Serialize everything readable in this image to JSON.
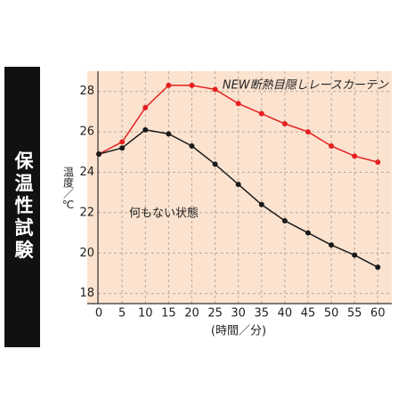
{
  "chart_data": {
    "type": "line",
    "side_label": "保温性試験",
    "ylabel": "温度／℃",
    "xlabel": "(時間／分)",
    "x": [
      0,
      5,
      10,
      15,
      20,
      25,
      30,
      35,
      40,
      45,
      50,
      55,
      60
    ],
    "series": [
      {
        "name": "NEW断熱目隠しレースカーテン",
        "color": "#e62020",
        "values": [
          24.9,
          25.5,
          27.2,
          28.3,
          28.3,
          28.1,
          27.4,
          26.9,
          26.4,
          26.0,
          25.3,
          24.8,
          24.5
        ]
      },
      {
        "name": "何もない状態",
        "color": "#1a1a1a",
        "values": [
          24.9,
          25.2,
          26.1,
          25.9,
          25.3,
          24.4,
          23.4,
          22.4,
          21.6,
          21.0,
          20.4,
          19.9,
          19.3
        ]
      }
    ],
    "xlim": [
      -2.5,
      63
    ],
    "ylim": [
      17.5,
      29
    ],
    "xticks": [
      0,
      5,
      10,
      15,
      20,
      25,
      30,
      35,
      40,
      45,
      50,
      55,
      60
    ],
    "yticks": [
      18,
      20,
      22,
      24,
      26,
      28
    ],
    "grid": true,
    "background": "#fbe3d0"
  }
}
